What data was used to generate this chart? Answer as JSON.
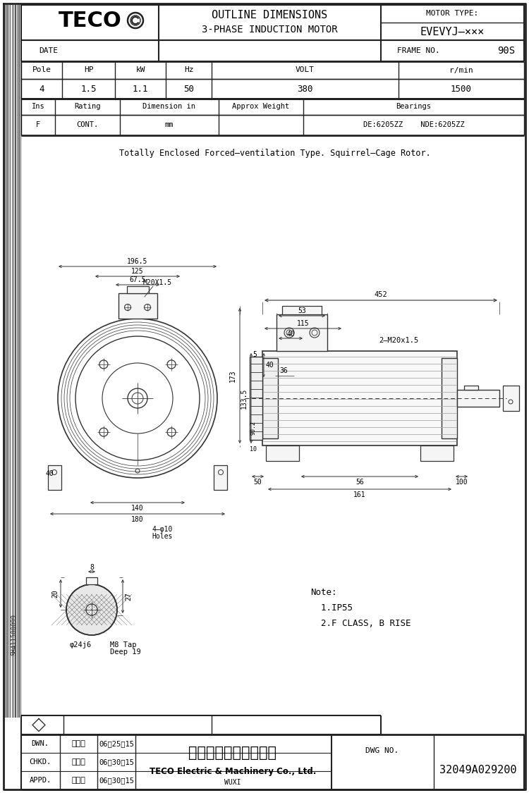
{
  "title_outline": "OUTLINE DIMENSIONS",
  "title_sub": "3-PHASE INDUCTION MOTOR",
  "motor_type_label": "MOTOR TYPE:",
  "motor_type_value": "EVEVYJ—×××",
  "frame_no_label": "FRAME NO.",
  "frame_no_value": "90S",
  "date_label": "DATE",
  "headers1": [
    "Pole",
    "HP",
    "kW",
    "Hz",
    "VOLT",
    "r/min"
  ],
  "values1": [
    "4",
    "1.5",
    "1.1",
    "50",
    "380",
    "1500"
  ],
  "headers2": [
    "Ins",
    "Rating",
    "Dimension in",
    "Approx Weight",
    "Bearings"
  ],
  "values2": [
    "F",
    "CONT.",
    "mm",
    "",
    "DE:6205ZZ    NDE:6205ZZ"
  ],
  "description": "Totally Enclosed Forced—ventilation Type. Squirrel—Cage Rotor.",
  "note_lines": [
    "Note:",
    "  1.IP55",
    "  2.F CLASS, B RISE"
  ],
  "dwn_label": "DWN.",
  "dwn_name": "季素媛",
  "dwn_date": "06‥25‥15",
  "chkd_label": "CHKD.",
  "chkd_name": "薄敏高",
  "chkd_date": "06‥30‥15",
  "appd_label": "APPD.",
  "appd_name": "郭耀良",
  "appd_date": "06‥30‥15",
  "company_cn": "東元電機股份有限公司",
  "company_en": "TECO Electric & Machinery Co., Ltd.",
  "wuxi": "WUXI",
  "dwg_no_label": "DWG NO.",
  "dwg_no_value": "32049A029200",
  "line_color": "#222222",
  "draw_color": "#333333"
}
